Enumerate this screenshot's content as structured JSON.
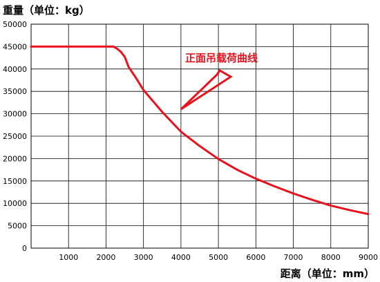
{
  "chart_data": {
    "type": "line",
    "ylabel": "重量（单位：kg）",
    "xlabel": "距离（单位：mm）",
    "xlim": [
      0,
      9000
    ],
    "ylim": [
      0,
      50000
    ],
    "x_ticks": [
      1000,
      2000,
      3000,
      4000,
      5000,
      6000,
      7000,
      8000,
      9000
    ],
    "y_ticks": [
      0,
      5000,
      10000,
      15000,
      20000,
      25000,
      30000,
      35000,
      40000,
      45000,
      50000
    ],
    "grid": true,
    "series": [
      {
        "name": "正面吊载荷曲线",
        "color": "#e8111c",
        "x": [
          0,
          1000,
          2000,
          2200,
          2300,
          2400,
          2500,
          2600,
          2800,
          3000,
          3500,
          4000,
          4500,
          5000,
          5500,
          6000,
          6500,
          7000,
          7500,
          8000,
          8500,
          9000
        ],
        "y": [
          45000,
          45000,
          45000,
          45000,
          44500,
          43800,
          42700,
          40500,
          38000,
          35300,
          30400,
          26000,
          22800,
          19900,
          17500,
          15500,
          13800,
          12200,
          10800,
          9500,
          8500,
          7600
        ]
      }
    ],
    "annotation": {
      "text": "正面吊载荷曲线",
      "color": "#e8111c",
      "arrow_points_to": {
        "x": 4000,
        "y": 31000
      }
    }
  }
}
